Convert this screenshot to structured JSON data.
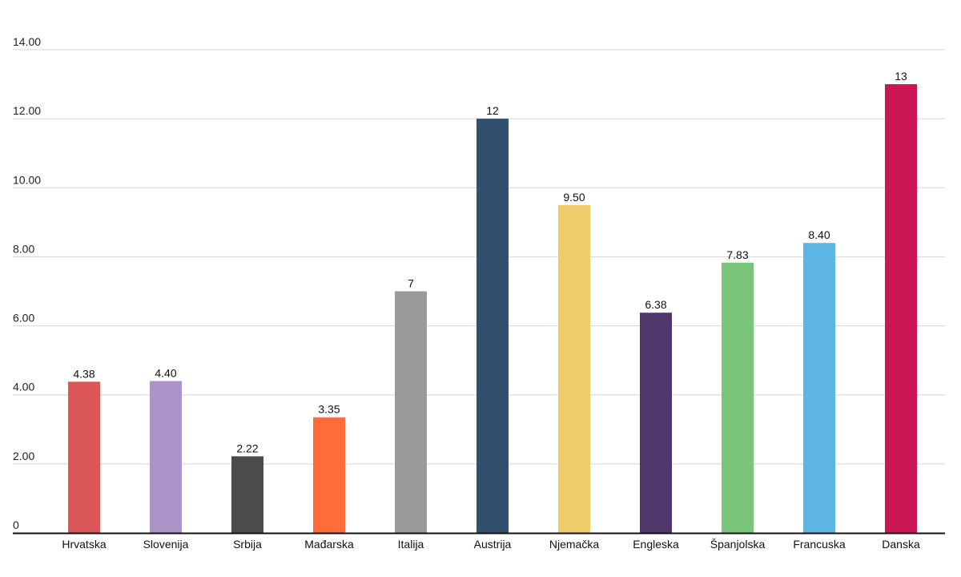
{
  "chart_data": {
    "type": "bar",
    "title": "",
    "xlabel": "",
    "ylabel": "",
    "ylim": [
      0,
      14
    ],
    "grid": true,
    "yticks": [
      0,
      2,
      4,
      6,
      8,
      10,
      12,
      14
    ],
    "ytick_labels": [
      "0",
      "2.00",
      "4.00",
      "6.00",
      "8.00",
      "10.00",
      "12.00",
      "14.00"
    ],
    "categories": [
      "Hrvatska",
      "Slovenija",
      "Srbija",
      "Mađarska",
      "Italija",
      "Austrija",
      "Njemačka",
      "Engleska",
      "Španjolska",
      "Francuska",
      "Danska"
    ],
    "values": [
      4.38,
      4.4,
      2.22,
      3.35,
      7,
      12,
      9.5,
      6.38,
      7.83,
      8.4,
      13
    ],
    "value_labels": [
      "4.38",
      "4.40",
      "2.22",
      "3.35",
      "7",
      "12",
      "9.50",
      "6.38",
      "7.83",
      "8.40",
      "13"
    ],
    "colors": [
      "#db5757",
      "#ab92c8",
      "#4b4b4b",
      "#ff6c3a",
      "#9a9a9a",
      "#324f6e",
      "#eecc6c",
      "#4f366b",
      "#79c67a",
      "#5cb5e2",
      "#cb1555"
    ]
  }
}
